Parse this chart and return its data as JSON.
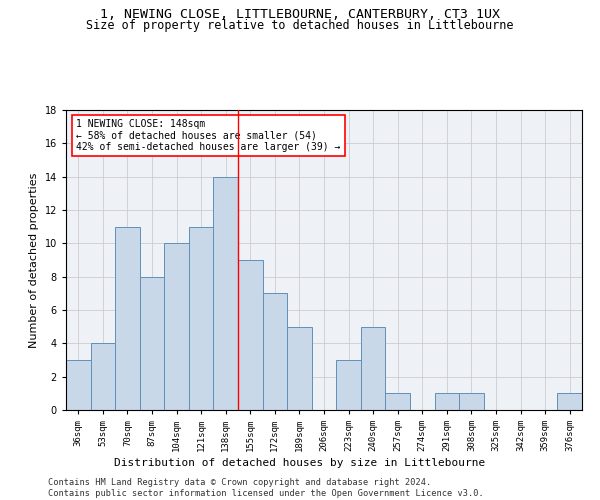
{
  "title_line1": "1, NEWING CLOSE, LITTLEBOURNE, CANTERBURY, CT3 1UX",
  "title_line2": "Size of property relative to detached houses in Littlebourne",
  "xlabel": "Distribution of detached houses by size in Littlebourne",
  "ylabel": "Number of detached properties",
  "categories": [
    "36sqm",
    "53sqm",
    "70sqm",
    "87sqm",
    "104sqm",
    "121sqm",
    "138sqm",
    "155sqm",
    "172sqm",
    "189sqm",
    "206sqm",
    "223sqm",
    "240sqm",
    "257sqm",
    "274sqm",
    "291sqm",
    "308sqm",
    "325sqm",
    "342sqm",
    "359sqm",
    "376sqm"
  ],
  "values": [
    3,
    4,
    11,
    8,
    10,
    11,
    14,
    9,
    7,
    5,
    0,
    3,
    5,
    1,
    0,
    1,
    1,
    0,
    0,
    0,
    1
  ],
  "bar_color": "#c8d8e8",
  "bar_edge_color": "#6090b8",
  "vline_x_index": 6.5,
  "vline_color": "red",
  "annotation_text": "1 NEWING CLOSE: 148sqm\n← 58% of detached houses are smaller (54)\n42% of semi-detached houses are larger (39) →",
  "annotation_box_color": "white",
  "annotation_box_edge_color": "red",
  "ylim": [
    0,
    18
  ],
  "yticks": [
    0,
    2,
    4,
    6,
    8,
    10,
    12,
    14,
    16,
    18
  ],
  "grid_color": "#cccccc",
  "bg_color": "#eef2f7",
  "footer_line1": "Contains HM Land Registry data © Crown copyright and database right 2024.",
  "footer_line2": "Contains public sector information licensed under the Open Government Licence v3.0.",
  "title_fontsize": 9.5,
  "subtitle_fontsize": 8.5,
  "tick_fontsize": 6.5,
  "ylabel_fontsize": 8,
  "xlabel_fontsize": 8,
  "annotation_fontsize": 7,
  "footer_fontsize": 6.2
}
